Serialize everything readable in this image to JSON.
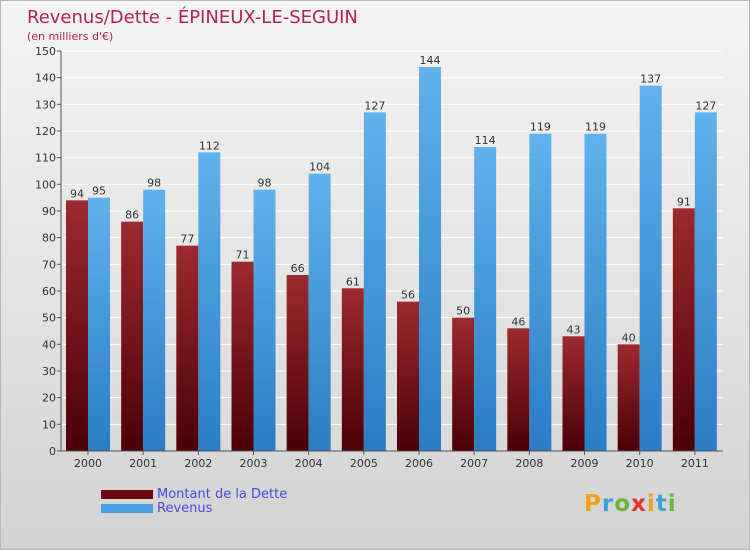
{
  "title": "Revenus/Dette - ÉPINEUX-LE-SEGUIN",
  "subtitle": "(en milliers d'€)",
  "colors": {
    "dette": "#8b1a1e",
    "dette_dark": "#5a0008",
    "revenus": "#55a8e6",
    "revenus_dark": "#2a7ac2",
    "title": "#b51f55",
    "legend_text": "#4a4ae6"
  },
  "legend": [
    {
      "label": "Montant de la Dette",
      "color": "#6b0a10"
    },
    {
      "label": "Revenus",
      "color": "#4a9fe0"
    }
  ],
  "logo": {
    "letters": [
      "P",
      "r",
      "o",
      "x",
      "i",
      "t",
      "i"
    ],
    "colors": [
      "#f2a21a",
      "#3aa2d8",
      "#6cb43a",
      "#e8302a",
      "#f2a21a",
      "#3aa2d8",
      "#6cb43a"
    ]
  },
  "chart_data": {
    "type": "bar",
    "categories": [
      "2000",
      "2001",
      "2002",
      "2003",
      "2004",
      "2005",
      "2006",
      "2007",
      "2008",
      "2009",
      "2010",
      "2011"
    ],
    "series": [
      {
        "name": "Montant de la Dette",
        "values": [
          94,
          86,
          77,
          71,
          66,
          61,
          56,
          50,
          46,
          43,
          40,
          91
        ]
      },
      {
        "name": "Revenus",
        "values": [
          95,
          98,
          112,
          98,
          104,
          127,
          144,
          114,
          119,
          119,
          137,
          127
        ]
      }
    ],
    "ylim": [
      0,
      150
    ],
    "yticks": [
      0,
      10,
      20,
      30,
      40,
      50,
      60,
      70,
      80,
      90,
      100,
      110,
      120,
      130,
      140,
      150
    ],
    "grid": true,
    "legend_position": "bottom-left"
  }
}
